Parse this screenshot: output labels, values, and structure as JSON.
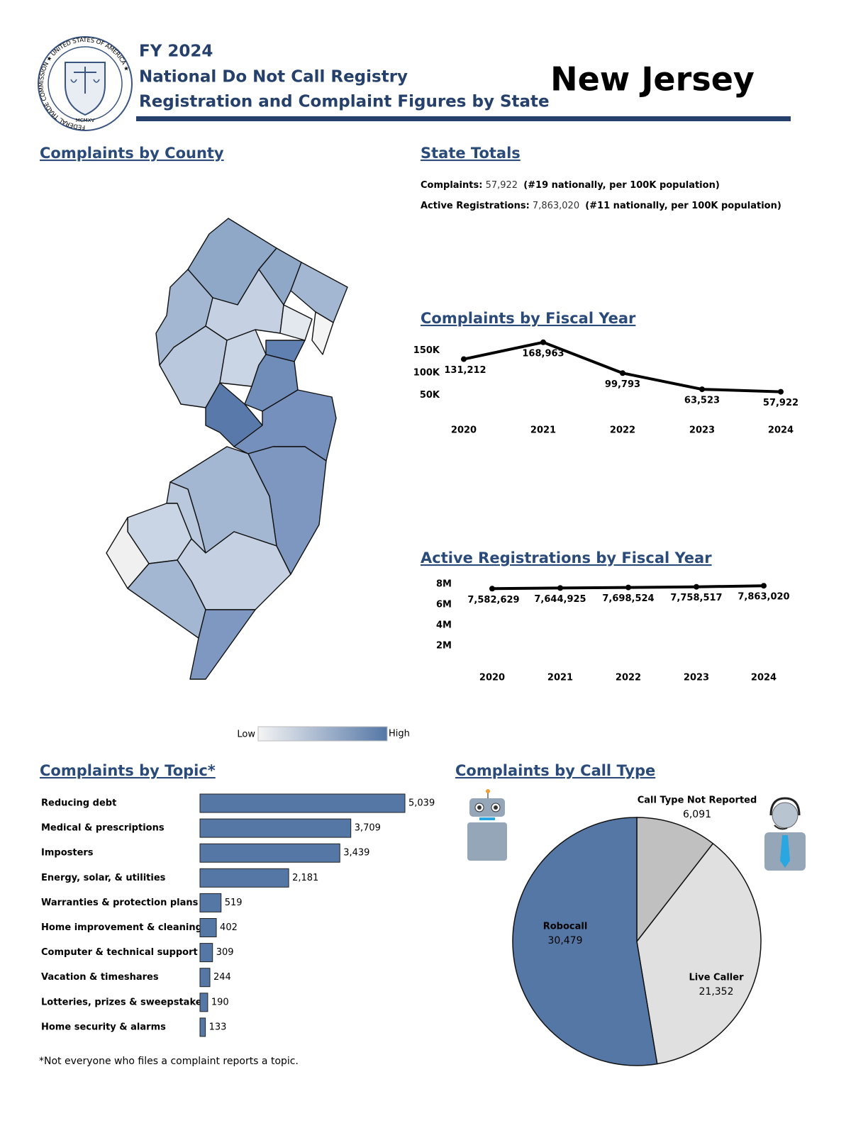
{
  "header": {
    "fy": "FY 2024",
    "line1": "National Do Not Call Registry",
    "line2": "Registration and Complaint Figures by State",
    "state": "New Jersey"
  },
  "logo": {
    "ring": "FEDERAL TRADE COMMISSION ★ UNITED STATES OF AMERICA ★",
    "year": "MCMXV"
  },
  "map": {
    "title": "Complaints by County",
    "legend_low": "Low",
    "legend_high": "High"
  },
  "state_totals": {
    "title": "State Totals",
    "complaints_label": "Complaints:",
    "complaints": "57,922",
    "complaints_rank": "(#19 nationally, per 100K population)",
    "registrations_label": "Active Registrations:",
    "registrations": "7,863,020",
    "registrations_rank": "(#11 nationally, per 100K population)"
  },
  "chart_data": [
    {
      "type": "line",
      "title": "Complaints by Fiscal Year",
      "categories": [
        "2020",
        "2021",
        "2022",
        "2023",
        "2024"
      ],
      "values": [
        131212,
        168963,
        99793,
        63523,
        57922
      ],
      "value_labels": [
        "131,212",
        "168,963",
        "99,793",
        "63,523",
        "57,922"
      ],
      "color": "#000000",
      "ylim": [
        0,
        175000
      ],
      "yticks": [
        {
          "value": 50000,
          "label": "50K"
        },
        {
          "value": 100000,
          "label": "100K"
        },
        {
          "value": 150000,
          "label": "150K"
        }
      ]
    },
    {
      "type": "line",
      "title": "Active Registrations by Fiscal Year",
      "categories": [
        "2020",
        "2021",
        "2022",
        "2023",
        "2024"
      ],
      "values": [
        7582629,
        7644925,
        7698524,
        7758517,
        7863020
      ],
      "value_labels": [
        "7,582,629",
        "7,644,925",
        "7,698,524",
        "7,758,517",
        "7,863,020"
      ],
      "color": "#000000",
      "ylim": [
        0,
        8500000
      ],
      "yticks": [
        {
          "value": 2000000,
          "label": "2M"
        },
        {
          "value": 4000000,
          "label": "4M"
        },
        {
          "value": 6000000,
          "label": "6M"
        },
        {
          "value": 8000000,
          "label": "8M"
        }
      ]
    },
    {
      "type": "hbar",
      "title": "Complaints by Topic*",
      "categories": [
        "Reducing debt",
        "Medical & prescriptions",
        "Imposters",
        "Energy, solar, & utilities",
        "Warranties & protection plans",
        "Home improvement & cleaning",
        "Computer & technical support",
        "Vacation & timeshares",
        "Lotteries, prizes & sweepstakes",
        "Home security & alarms"
      ],
      "values": [
        5039,
        3709,
        3439,
        2181,
        519,
        402,
        309,
        244,
        190,
        133
      ],
      "value_labels": [
        "5,039",
        "3,709",
        "3,439",
        "2,181",
        "519",
        "402",
        "309",
        "244",
        "190",
        "133"
      ],
      "color": "#5577a6"
    },
    {
      "type": "pie",
      "title": "Complaints by Call Type",
      "categories": [
        "Call Type Not Reported",
        "Live Caller",
        "Robocall"
      ],
      "values": [
        6091,
        21352,
        30479
      ],
      "value_labels": [
        "6,091",
        "21,352",
        "30,479"
      ],
      "colors": [
        "#c0c0c0",
        "#e0e0e0",
        "#5577a6"
      ]
    }
  ],
  "footnote": "*Not everyone who files a complaint reports a topic."
}
